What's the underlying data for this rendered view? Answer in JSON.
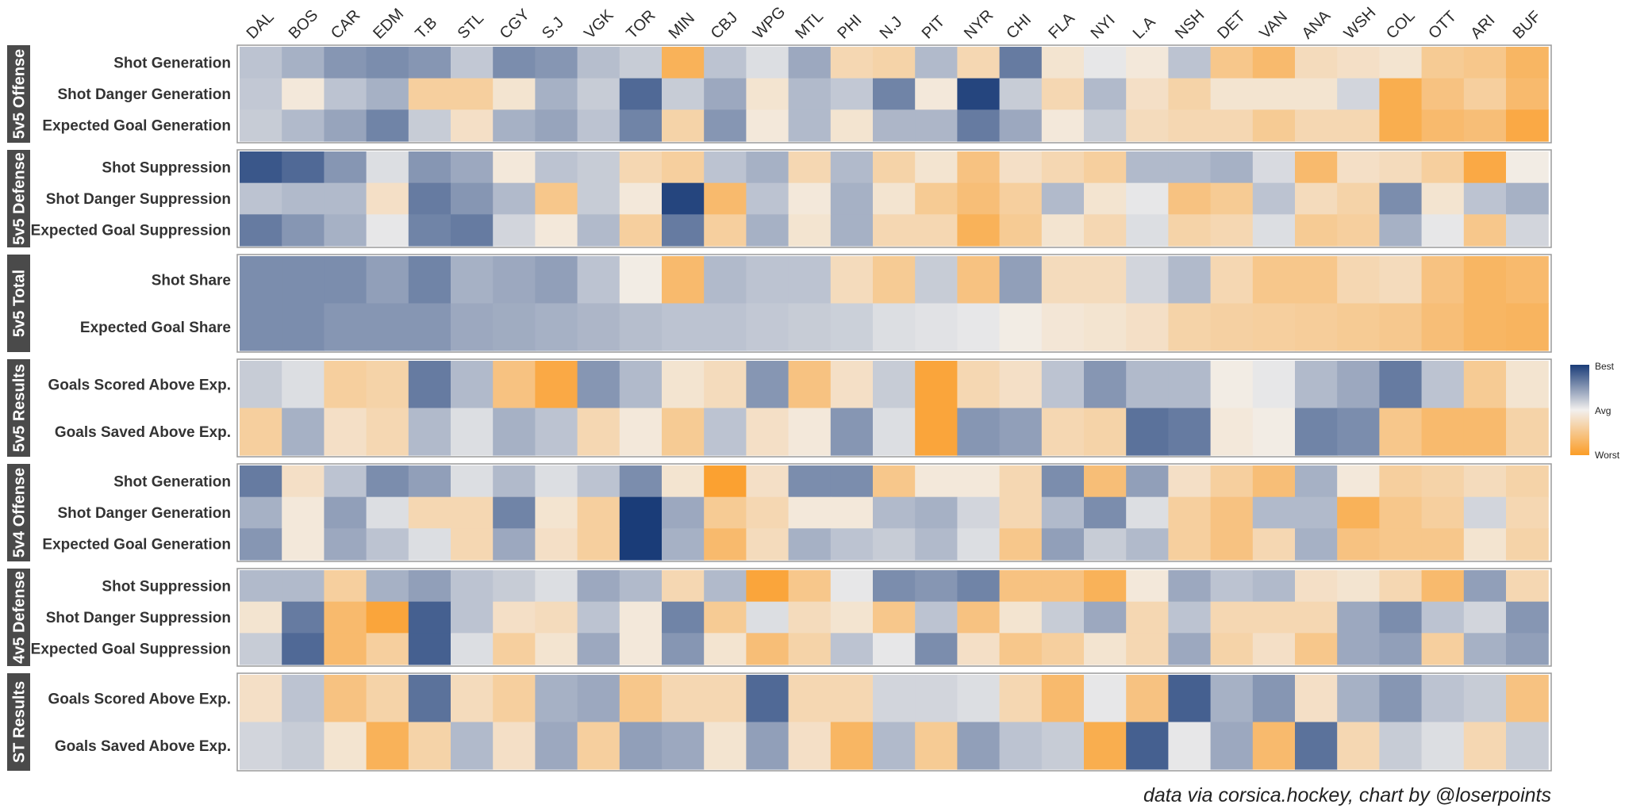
{
  "chart_data": {
    "type": "heatmap",
    "teams": [
      "DAL",
      "BOS",
      "CAR",
      "EDM",
      "T.B",
      "STL",
      "CGY",
      "S.J",
      "VGK",
      "TOR",
      "MIN",
      "CBJ",
      "WPG",
      "MTL",
      "PHI",
      "N.J",
      "PIT",
      "NYR",
      "CHI",
      "FLA",
      "NYI",
      "L.A",
      "NSH",
      "DET",
      "VAN",
      "ANA",
      "WSH",
      "COL",
      "OTT",
      "ARI",
      "BUF"
    ],
    "value_scale": "-1 = Worst (orange), 0 = Avg (white), 1 = Best (navy)",
    "colors": {
      "best": "#1a3c78",
      "avg": "#f2f0ee",
      "worst": "#fb9d27"
    },
    "facets": [
      {
        "name": "5v5 Offense",
        "rows": [
          {
            "label": "Shot Generation",
            "values": [
              0.25,
              0.35,
              0.5,
              0.55,
              0.5,
              0.22,
              0.55,
              0.5,
              0.28,
              0.2,
              -0.75,
              0.25,
              0.1,
              0.4,
              -0.3,
              -0.35,
              0.3,
              -0.3,
              0.65,
              -0.15,
              0.05,
              -0.1,
              0.25,
              -0.5,
              -0.65,
              -0.25,
              -0.2,
              -0.15,
              -0.45,
              -0.5,
              -0.7
            ]
          },
          {
            "label": "Shot Danger Generation",
            "values": [
              0.22,
              -0.1,
              0.25,
              0.35,
              -0.4,
              -0.4,
              -0.15,
              0.35,
              0.2,
              0.75,
              0.2,
              0.4,
              -0.15,
              0.3,
              0.22,
              0.6,
              -0.1,
              0.95,
              0.2,
              -0.3,
              0.3,
              -0.2,
              -0.35,
              -0.15,
              -0.15,
              -0.15,
              0.15,
              -0.8,
              -0.55,
              -0.4,
              -0.65
            ]
          },
          {
            "label": "Expected Goal Generation",
            "values": [
              0.2,
              0.3,
              0.42,
              0.6,
              0.2,
              -0.2,
              0.35,
              0.42,
              0.25,
              0.6,
              -0.35,
              0.5,
              -0.1,
              0.3,
              -0.15,
              0.32,
              0.32,
              0.65,
              0.4,
              -0.1,
              0.2,
              -0.25,
              -0.3,
              -0.3,
              -0.45,
              -0.3,
              -0.3,
              -0.8,
              -0.65,
              -0.6,
              -0.85
            ]
          }
        ]
      },
      {
        "name": "5v5 Defense",
        "rows": [
          {
            "label": "Shot Suppression",
            "values": [
              0.85,
              0.75,
              0.5,
              0.1,
              0.5,
              0.4,
              -0.1,
              0.25,
              0.2,
              -0.3,
              -0.4,
              0.25,
              0.35,
              -0.3,
              0.3,
              -0.35,
              -0.15,
              -0.55,
              -0.2,
              -0.3,
              -0.4,
              0.3,
              0.3,
              0.35,
              0.12,
              -0.65,
              -0.2,
              -0.25,
              -0.4,
              -0.85,
              -0.05
            ]
          },
          {
            "label": "Shot Danger Suppression",
            "values": [
              0.25,
              0.3,
              0.3,
              -0.2,
              0.65,
              0.5,
              0.3,
              -0.5,
              0.2,
              -0.1,
              0.95,
              -0.65,
              0.25,
              -0.1,
              0.35,
              -0.15,
              -0.45,
              -0.6,
              -0.4,
              0.3,
              -0.15,
              0.05,
              -0.55,
              -0.45,
              0.25,
              -0.25,
              -0.35,
              0.55,
              -0.15,
              0.25,
              0.35
            ]
          },
          {
            "label": "Expected Goal Suppression",
            "values": [
              0.65,
              0.5,
              0.35,
              0.05,
              0.6,
              0.65,
              0.15,
              -0.1,
              0.3,
              -0.4,
              0.65,
              -0.4,
              0.35,
              -0.15,
              0.35,
              -0.3,
              -0.3,
              -0.75,
              -0.45,
              -0.15,
              -0.3,
              0.1,
              -0.35,
              -0.3,
              0.1,
              -0.45,
              -0.4,
              0.35,
              0.05,
              -0.5,
              0.15
            ]
          }
        ]
      },
      {
        "name": "5v5 Total",
        "rows": [
          {
            "label": "Shot Share",
            "values": [
              0.55,
              0.55,
              0.55,
              0.45,
              0.6,
              0.35,
              0.4,
              0.45,
              0.25,
              -0.05,
              -0.65,
              0.3,
              0.25,
              0.25,
              -0.25,
              -0.45,
              0.2,
              -0.55,
              0.45,
              -0.25,
              -0.25,
              0.15,
              0.3,
              -0.3,
              -0.5,
              -0.5,
              -0.3,
              -0.25,
              -0.55,
              -0.7,
              -0.65
            ]
          },
          {
            "label": "Expected Goal Share",
            "values": [
              0.55,
              0.55,
              0.5,
              0.5,
              0.5,
              0.4,
              0.38,
              0.35,
              0.32,
              0.28,
              0.25,
              0.25,
              0.22,
              0.2,
              0.18,
              0.1,
              0.08,
              0.05,
              -0.05,
              -0.12,
              -0.15,
              -0.2,
              -0.35,
              -0.38,
              -0.4,
              -0.42,
              -0.45,
              -0.48,
              -0.6,
              -0.7,
              -0.72
            ]
          }
        ]
      },
      {
        "name": "5v5 Results",
        "rows": [
          {
            "label": "Goals Scored Above Exp.",
            "values": [
              0.2,
              0.1,
              -0.4,
              -0.35,
              0.65,
              0.3,
              -0.55,
              -0.85,
              0.5,
              0.3,
              -0.15,
              -0.25,
              0.5,
              -0.55,
              -0.2,
              0.2,
              -0.9,
              -0.3,
              -0.2,
              0.25,
              0.5,
              0.3,
              0.3,
              -0.05,
              0.05,
              0.3,
              0.4,
              0.65,
              0.25,
              -0.45,
              -0.15
            ]
          },
          {
            "label": "Goals Saved Above Exp.",
            "values": [
              -0.4,
              0.35,
              -0.2,
              -0.3,
              0.3,
              0.1,
              0.35,
              0.25,
              -0.3,
              -0.1,
              -0.45,
              0.25,
              -0.2,
              -0.1,
              0.5,
              0.1,
              -0.9,
              0.5,
              0.45,
              -0.3,
              -0.35,
              0.7,
              0.65,
              -0.1,
              -0.05,
              0.6,
              0.55,
              -0.5,
              -0.65,
              -0.65,
              -0.35
            ]
          }
        ]
      },
      {
        "name": "5v4 Offense",
        "rows": [
          {
            "label": "Shot Generation",
            "values": [
              0.65,
              -0.2,
              0.25,
              0.55,
              0.45,
              0.1,
              0.3,
              0.1,
              0.25,
              0.55,
              -0.15,
              -0.95,
              -0.2,
              0.55,
              0.55,
              -0.5,
              -0.1,
              -0.1,
              -0.3,
              0.55,
              -0.6,
              0.45,
              -0.2,
              -0.4,
              -0.6,
              0.35,
              -0.1,
              -0.4,
              -0.35,
              -0.25,
              -0.35
            ]
          },
          {
            "label": "Shot Danger Generation",
            "values": [
              0.35,
              -0.1,
              0.45,
              0.1,
              -0.3,
              -0.3,
              0.6,
              -0.15,
              -0.4,
              1.0,
              0.4,
              -0.45,
              -0.3,
              -0.1,
              -0.1,
              0.3,
              0.35,
              0.15,
              -0.3,
              0.3,
              0.55,
              0.1,
              -0.4,
              -0.55,
              0.3,
              0.3,
              -0.75,
              -0.5,
              -0.4,
              0.15,
              -0.3
            ]
          },
          {
            "label": "Expected Goal Generation",
            "values": [
              0.5,
              -0.1,
              0.4,
              0.25,
              0.1,
              -0.3,
              0.4,
              -0.2,
              -0.4,
              1.0,
              0.35,
              -0.65,
              -0.25,
              0.35,
              0.25,
              0.2,
              0.3,
              0.1,
              -0.5,
              0.45,
              0.2,
              0.3,
              -0.4,
              -0.55,
              -0.3,
              0.35,
              -0.55,
              -0.5,
              -0.5,
              -0.15,
              -0.35
            ]
          }
        ]
      },
      {
        "name": "4v5 Defense",
        "rows": [
          {
            "label": "Shot Suppression",
            "values": [
              0.3,
              0.3,
              -0.4,
              0.35,
              0.45,
              0.25,
              0.2,
              0.1,
              0.4,
              0.3,
              -0.3,
              0.3,
              -0.9,
              -0.5,
              0.05,
              0.55,
              0.5,
              0.6,
              -0.55,
              -0.55,
              -0.75,
              -0.1,
              0.4,
              0.25,
              0.3,
              -0.2,
              -0.15,
              -0.3,
              -0.65,
              0.45,
              -0.3
            ]
          },
          {
            "label": "Shot Danger Suppression",
            "values": [
              -0.15,
              0.65,
              -0.65,
              -0.9,
              0.8,
              0.25,
              -0.2,
              -0.25,
              0.25,
              -0.1,
              0.6,
              -0.45,
              0.1,
              -0.25,
              -0.15,
              -0.5,
              0.25,
              -0.55,
              -0.15,
              0.2,
              0.4,
              -0.3,
              0.25,
              -0.3,
              -0.3,
              -0.3,
              0.4,
              0.55,
              0.25,
              0.15,
              0.5
            ]
          },
          {
            "label": "Expected Goal Suppression",
            "values": [
              0.2,
              0.75,
              -0.65,
              -0.4,
              0.8,
              0.1,
              -0.4,
              -0.15,
              0.4,
              -0.1,
              0.5,
              -0.15,
              -0.6,
              -0.35,
              0.25,
              0.05,
              0.55,
              -0.2,
              -0.5,
              -0.4,
              -0.15,
              -0.3,
              0.4,
              -0.35,
              -0.2,
              -0.5,
              0.4,
              0.45,
              -0.4,
              0.35,
              0.45
            ]
          }
        ]
      },
      {
        "name": "ST Results",
        "rows": [
          {
            "label": "Goals Scored Above Exp.",
            "values": [
              -0.2,
              0.25,
              -0.55,
              -0.35,
              0.7,
              -0.25,
              -0.4,
              0.35,
              0.4,
              -0.5,
              -0.3,
              -0.3,
              0.75,
              -0.3,
              -0.3,
              0.15,
              0.15,
              0.1,
              -0.3,
              -0.65,
              0.05,
              -0.55,
              0.8,
              0.35,
              0.5,
              -0.2,
              0.35,
              0.5,
              0.25,
              0.2,
              -0.55
            ]
          },
          {
            "label": "Goals Saved Above Exp.",
            "values": [
              0.15,
              0.2,
              -0.15,
              -0.75,
              -0.35,
              0.3,
              -0.2,
              0.4,
              -0.4,
              0.45,
              0.4,
              -0.15,
              0.45,
              -0.2,
              -0.7,
              0.3,
              -0.45,
              0.45,
              0.25,
              0.2,
              -0.8,
              0.8,
              0.05,
              0.4,
              -0.65,
              0.7,
              -0.3,
              0.2,
              0.1,
              -0.3,
              0.2
            ]
          }
        ]
      }
    ],
    "legend": {
      "best": "Best",
      "avg": "Avg",
      "worst": "Worst",
      "placement": "right"
    },
    "caption": "data via corsica.hockey, chart by @loserpoints"
  }
}
